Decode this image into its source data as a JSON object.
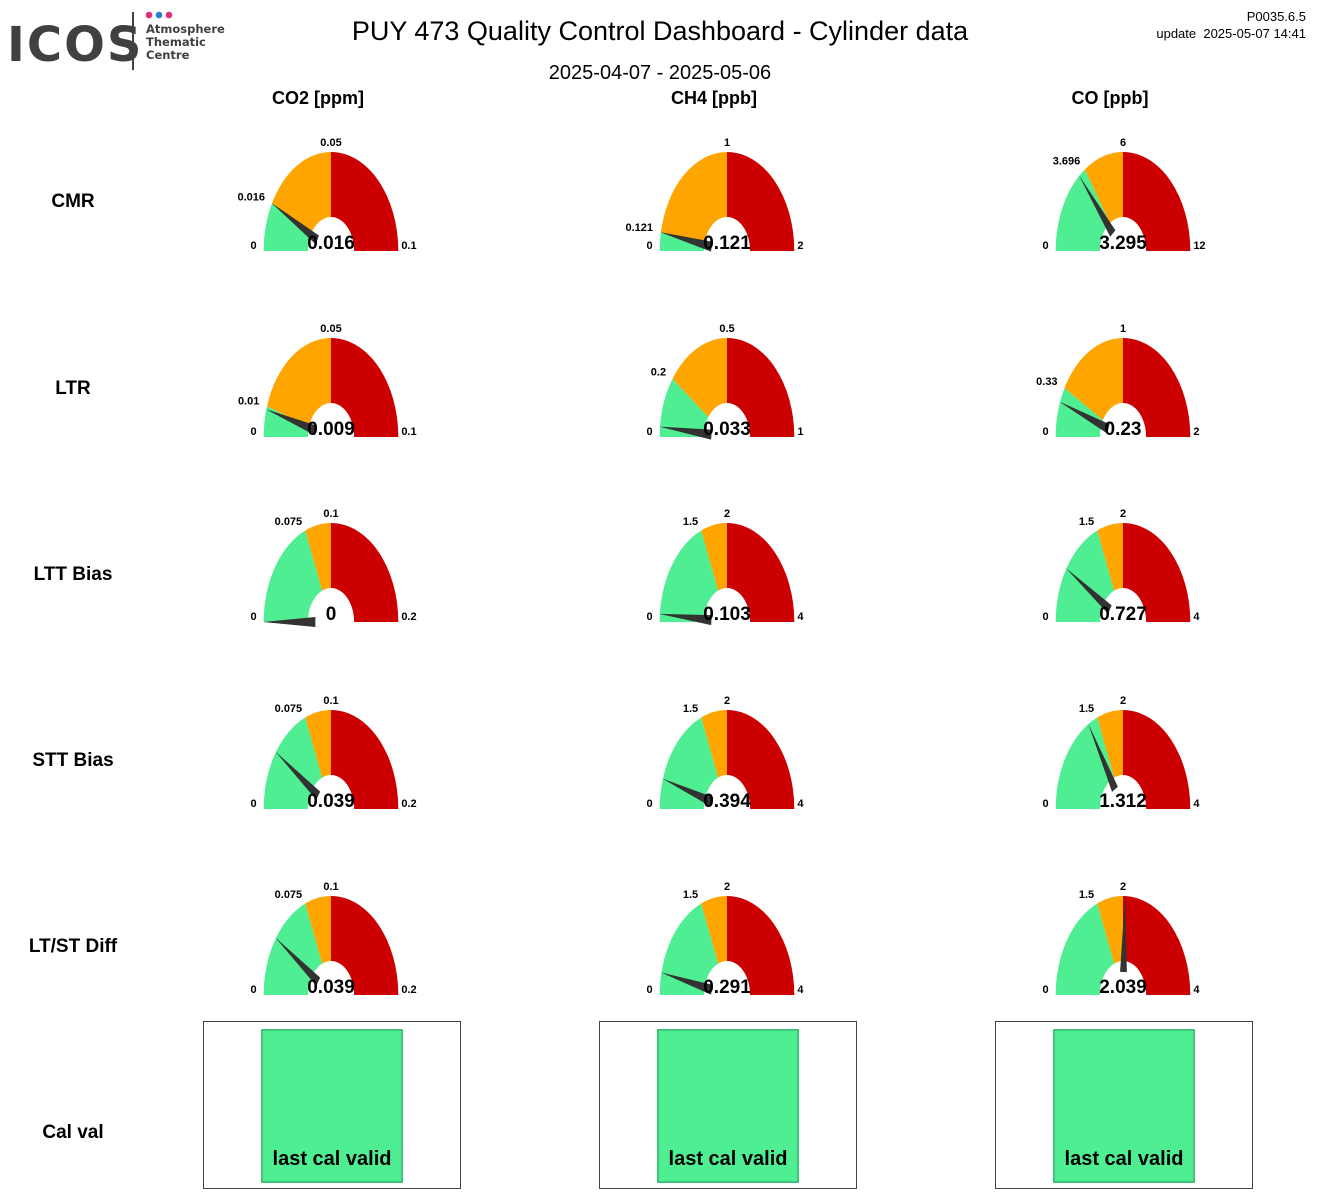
{
  "header": {
    "logo_text": "ICOS",
    "logo_sub": [
      "Atmosphere",
      "Thematic",
      "Centre"
    ],
    "title": "PUY 473 Quality Control Dashboard - Cylinder data",
    "date_range": "2025-04-07 - 2025-05-06",
    "version": "P0035.6.5",
    "update": "update  2025-05-07 14:41"
  },
  "colors": {
    "green": "#50ee92",
    "orange": "#ffa500",
    "red": "#cc0000",
    "needle": "#333333",
    "logo_dots": [
      "#e0307a",
      "#2c7bd0",
      "#e0307a"
    ]
  },
  "chart_data": {
    "type": "gauge",
    "columns": [
      "CO2 [ppm]",
      "CH4 [ppb]",
      "CO [ppb]"
    ],
    "rows": [
      "CMR",
      "LTR",
      "LTT Bias",
      "STT Bias",
      "LT/ST Diff",
      "Cal val"
    ],
    "gauges": [
      [
        {
          "min": "0",
          "max": "0.1",
          "green": "0.016",
          "orange": "0.05",
          "value": "0.016"
        },
        {
          "min": "0",
          "max": "2",
          "green": "0.121",
          "orange": "1",
          "value": "0.121"
        },
        {
          "min": "0",
          "max": "12",
          "green": "3.696",
          "orange": "6",
          "value": "3.295"
        }
      ],
      [
        {
          "min": "0",
          "max": "0.1",
          "green": "0.01",
          "orange": "0.05",
          "value": "0.009"
        },
        {
          "min": "0",
          "max": "1",
          "green": "0.2",
          "orange": "0.5",
          "value": "0.033"
        },
        {
          "min": "0",
          "max": "2",
          "green": "0.33",
          "orange": "1",
          "value": "0.23"
        }
      ],
      [
        {
          "min": "0",
          "max": "0.2",
          "green": "0.075",
          "orange": "0.1",
          "value": "0"
        },
        {
          "min": "0",
          "max": "4",
          "green": "1.5",
          "orange": "2",
          "value": "0.103"
        },
        {
          "min": "0",
          "max": "4",
          "green": "1.5",
          "orange": "2",
          "value": "0.727"
        }
      ],
      [
        {
          "min": "0",
          "max": "0.2",
          "green": "0.075",
          "orange": "0.1",
          "value": "0.039"
        },
        {
          "min": "0",
          "max": "4",
          "green": "1.5",
          "orange": "2",
          "value": "0.394"
        },
        {
          "min": "0",
          "max": "4",
          "green": "1.5",
          "orange": "2",
          "value": "1.312"
        }
      ],
      [
        {
          "min": "0",
          "max": "0.2",
          "green": "0.075",
          "orange": "0.1",
          "value": "0.039"
        },
        {
          "min": "0",
          "max": "4",
          "green": "1.5",
          "orange": "2",
          "value": "0.291"
        },
        {
          "min": "0",
          "max": "4",
          "green": "1.5",
          "orange": "2",
          "value": "2.039"
        }
      ]
    ],
    "cal_val": [
      "last cal valid",
      "last cal valid",
      "last cal valid"
    ]
  }
}
